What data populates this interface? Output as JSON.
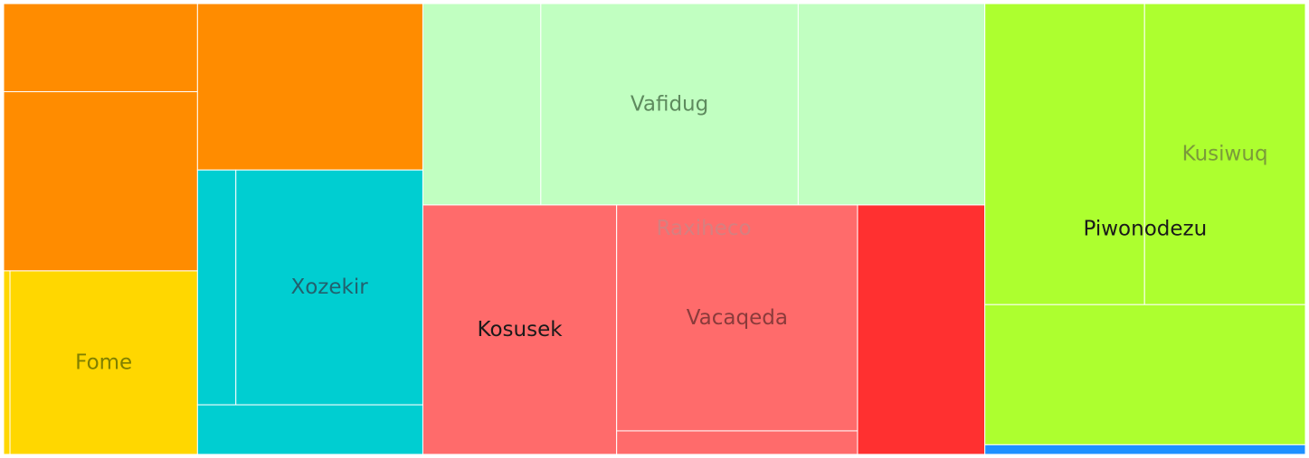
{
  "chart_data": {
    "type": "treemap",
    "title": "",
    "groups": [
      {
        "name": "Fome",
        "color": "#FF8C00",
        "label_color": "#808000",
        "children": [
          {
            "name": "",
            "value": 2050,
            "color": "#FF8C00"
          },
          {
            "name": "",
            "value": 4170,
            "color": "#FF8C00"
          },
          {
            "name": "",
            "value": 4500,
            "color": "#FF8C00"
          },
          {
            "name": "",
            "value": 140,
            "color": "#FFD700"
          },
          {
            "name": "Fome",
            "value": 4130,
            "color": "#FFD700"
          }
        ]
      },
      {
        "name": "Xozekir",
        "color": "#00CED1",
        "label_color": "#22616e",
        "children": [
          {
            "name": "",
            "value": 1080,
            "color": "#00CED1"
          },
          {
            "name": "Xozekir",
            "value": 5270,
            "color": "#00CED1"
          },
          {
            "name": "",
            "value": 1340,
            "color": "#00CED1"
          }
        ]
      },
      {
        "name": "Vafidug",
        "color": "#C1FFC1",
        "label_color": "#5e8a5e",
        "children": [
          {
            "name": "",
            "value": 2850,
            "color": "#C1FFC1"
          },
          {
            "name": "Vafidug",
            "value": 6220,
            "color": "#C1FFC1"
          },
          {
            "name": "",
            "value": 4510,
            "color": "#C1FFC1"
          }
        ]
      },
      {
        "name": "Raxiheco",
        "color": "#FF6B6B",
        "label_color": "#d58080",
        "children": [
          {
            "name": "Kosusek",
            "value": 5800,
            "color": "#FF6B6B",
            "label_color": "#1a1a1a"
          },
          {
            "name": "Vacaqeda",
            "value": 6530,
            "color": "#FF6B6B",
            "label_color": "#8a3b3b"
          },
          {
            "name": "",
            "value": 680,
            "color": "#FF6B6B"
          },
          {
            "name": "",
            "value": 3810,
            "color": "#FF3030"
          }
        ]
      },
      {
        "name": "Piwonodezu",
        "color": "#ADFF2F",
        "label_color": "#1a1a1a",
        "children": [
          {
            "name": "",
            "value": 5770,
            "color": "#ADFF2F"
          },
          {
            "name": "Kusiwuq",
            "value": 5810,
            "color": "#ADFF2F",
            "label_color": "#7a9a3a"
          },
          {
            "name": "",
            "value": 5390,
            "color": "#ADFF2F"
          },
          {
            "name": "",
            "value": 370,
            "color": "#1E90FF"
          }
        ]
      }
    ]
  }
}
